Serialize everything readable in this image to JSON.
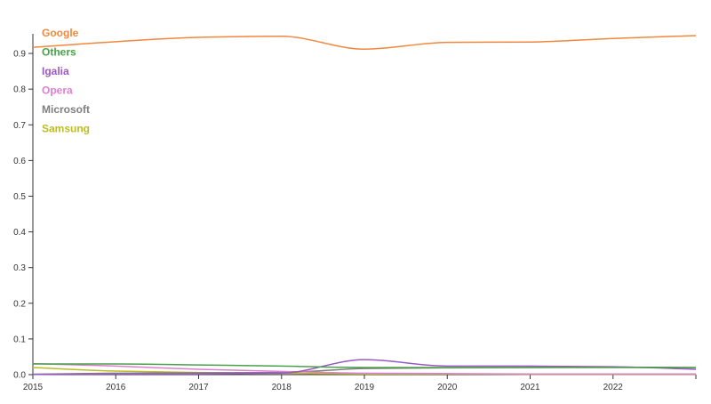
{
  "chart_data": {
    "type": "line",
    "title": "",
    "xlabel": "",
    "ylabel": "",
    "xlim": [
      2015,
      2023
    ],
    "ylim": [
      0,
      0.95
    ],
    "x_ticks": [
      "2015",
      "2016",
      "2017",
      "2018",
      "2019",
      "2020",
      "2021",
      "2022"
    ],
    "y_ticks": [
      "0.0",
      "0.1",
      "0.2",
      "0.3",
      "0.4",
      "0.5",
      "0.6",
      "0.7",
      "0.8",
      "0.9"
    ],
    "grid": false,
    "legend_position": "top-left",
    "x": [
      2015,
      2016,
      2017,
      2018,
      2019,
      2020,
      2021,
      2022,
      2023
    ],
    "series": [
      {
        "name": "Google",
        "color": "#f0883e",
        "values": [
          0.917,
          0.933,
          0.945,
          0.948,
          0.912,
          0.931,
          0.932,
          0.942,
          0.95
        ]
      },
      {
        "name": "Others",
        "color": "#4aa14a",
        "values": [
          0.03,
          0.03,
          0.027,
          0.024,
          0.02,
          0.02,
          0.02,
          0.02,
          0.02
        ]
      },
      {
        "name": "Igalia",
        "color": "#9b59c4",
        "values": [
          0.001,
          0.002,
          0.002,
          0.004,
          0.042,
          0.024,
          0.024,
          0.022,
          0.015
        ]
      },
      {
        "name": "Opera",
        "color": "#dc7fd0",
        "values": [
          0.031,
          0.024,
          0.015,
          0.009,
          0.004,
          0.003,
          0.002,
          0.002,
          0.002
        ]
      },
      {
        "name": "Microsoft",
        "color": "#7f7f7f",
        "values": [
          0.001,
          0.004,
          0.005,
          0.006,
          0.017,
          0.019,
          0.02,
          0.021,
          0.02
        ]
      },
      {
        "name": "Samsung",
        "color": "#bcbd22",
        "values": [
          0.02,
          0.01,
          0.006,
          0.004,
          0.002,
          0.002,
          0.001,
          0.001,
          0.001
        ]
      }
    ]
  }
}
